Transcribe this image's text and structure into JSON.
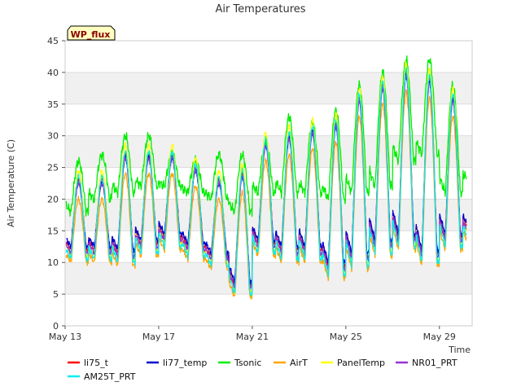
{
  "chart_data": {
    "type": "line",
    "title": "Air Temperatures",
    "xlabel": "Time",
    "ylabel": "Air Temperature (C)",
    "badge": "WP_flux",
    "xlim": [
      0,
      17.4
    ],
    "ylim": [
      0,
      45
    ],
    "y_ticks": [
      0,
      5,
      10,
      15,
      20,
      25,
      30,
      35,
      40,
      45
    ],
    "x_ticks": [
      {
        "value": 0,
        "label": "May 13"
      },
      {
        "value": 4,
        "label": "May 17"
      },
      {
        "value": 8,
        "label": "May 21"
      },
      {
        "value": 12,
        "label": "May 25"
      },
      {
        "value": 16,
        "label": "May 29"
      }
    ],
    "bands": [
      [
        5,
        10
      ],
      [
        15,
        20
      ],
      [
        25,
        30
      ],
      [
        35,
        40
      ]
    ],
    "daily": {
      "days": [
        0,
        1,
        2,
        3,
        4,
        5,
        6,
        7,
        8,
        9,
        10,
        11,
        12,
        13,
        14,
        15,
        16,
        17
      ],
      "base_min": [
        12,
        12,
        11.5,
        13,
        14,
        12.5,
        11,
        6.5,
        13,
        12,
        12,
        9.5,
        11,
        13,
        14,
        11.5,
        14,
        15
      ],
      "base_max": [
        23,
        23,
        27,
        27,
        27,
        25,
        23,
        24,
        29,
        30,
        31,
        32,
        36,
        38,
        40,
        39,
        36,
        29
      ],
      "tsonic_min": [
        18,
        20,
        21,
        22,
        22,
        21,
        20,
        18,
        21,
        21,
        21,
        20,
        21,
        22,
        26,
        27,
        21,
        23
      ],
      "tsonic_max": [
        26,
        27,
        30,
        30,
        27,
        26,
        27,
        27,
        29,
        33,
        32,
        34,
        38,
        40,
        42,
        42,
        38,
        30
      ]
    },
    "series": [
      {
        "name": "li75_t",
        "color": "#ff0000",
        "offset_min": 0,
        "offset_max": 0
      },
      {
        "name": "li77_temp",
        "color": "#0000cd",
        "offset_min": 0.5,
        "offset_max": -0.5
      },
      {
        "name": "Tsonic",
        "color": "#00ee00",
        "offset_min": 0,
        "offset_max": 0
      },
      {
        "name": "AirT",
        "color": "#ffa500",
        "offset_min": -2,
        "offset_max": -3
      },
      {
        "name": "PanelTemp",
        "color": "#ffff00",
        "offset_min": -1,
        "offset_max": 1.5
      },
      {
        "name": "NR01_PRT",
        "color": "#9932cc",
        "offset_min": -0.5,
        "offset_max": -0.5
      },
      {
        "name": "AM25T_PRT",
        "color": "#00eeee",
        "offset_min": -1.5,
        "offset_max": 0.5
      }
    ],
    "legend_position": "bottom",
    "grid": true
  }
}
